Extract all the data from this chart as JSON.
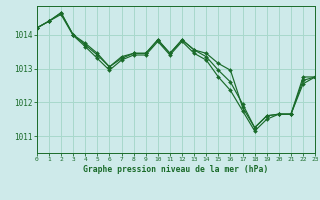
{
  "title": "Graphe pression niveau de la mer (hPa)",
  "background_color": "#ceeaea",
  "grid_color": "#a8d8cc",
  "line_color": "#1a6b2a",
  "marker_color": "#1a6b2a",
  "xlim": [
    0,
    23
  ],
  "ylim": [
    1010.5,
    1014.85
  ],
  "yticks": [
    1011,
    1012,
    1013,
    1014
  ],
  "xticks": [
    0,
    1,
    2,
    3,
    4,
    5,
    6,
    7,
    8,
    9,
    10,
    11,
    12,
    13,
    14,
    15,
    16,
    17,
    18,
    19,
    20,
    21,
    22,
    23
  ],
  "series": [
    [
      1014.2,
      1014.4,
      1014.65,
      1014.0,
      1013.75,
      1013.45,
      1013.05,
      1013.35,
      1013.45,
      1013.45,
      1013.85,
      1013.45,
      1013.85,
      1013.55,
      1013.45,
      1013.15,
      1012.95,
      1011.85,
      1011.25,
      1011.6,
      1011.65,
      1011.65,
      1012.75,
      1012.75
    ],
    [
      1014.2,
      1014.4,
      1014.65,
      1014.0,
      1013.7,
      1013.4,
      1013.05,
      1013.3,
      1013.45,
      1013.45,
      1013.85,
      1013.45,
      1013.85,
      1013.55,
      1013.35,
      1012.95,
      1012.6,
      1011.95,
      1011.25,
      1011.6,
      1011.65,
      1011.65,
      1012.65,
      1012.75
    ],
    [
      1014.2,
      1014.4,
      1014.6,
      1013.98,
      1013.65,
      1013.3,
      1012.95,
      1013.25,
      1013.4,
      1013.4,
      1013.8,
      1013.4,
      1013.8,
      1013.45,
      1013.25,
      1012.75,
      1012.35,
      1011.75,
      1011.15,
      1011.5,
      1011.65,
      1011.65,
      1012.55,
      1012.75
    ]
  ]
}
